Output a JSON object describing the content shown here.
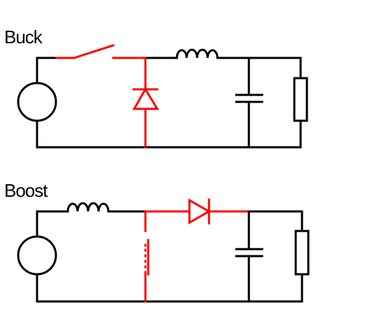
{
  "diagrams": [
    {
      "title": "Buck",
      "components": [
        "voltage-source",
        "switch",
        "diode",
        "inductor",
        "capacitor",
        "resistor-load"
      ],
      "highlighted": [
        "switch",
        "diode"
      ]
    },
    {
      "title": "Boost",
      "components": [
        "voltage-source",
        "inductor",
        "switch",
        "diode",
        "capacitor",
        "resistor-load"
      ],
      "highlighted": [
        "switch",
        "diode"
      ]
    }
  ],
  "colors": {
    "wire": "#000000",
    "highlight": "#ff0000",
    "background": "#ffffff"
  }
}
